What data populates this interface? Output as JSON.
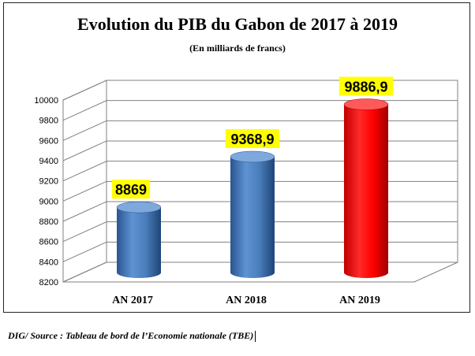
{
  "chart_data": {
    "type": "bar",
    "title": "Evolution du PIB du Gabon de 2017 à 2019",
    "subtitle": "(En milliards de francs)",
    "categories": [
      "AN 2017",
      "AN 2018",
      "AN 2019"
    ],
    "values": [
      8869,
      9368.9,
      9886.9
    ],
    "value_labels": [
      "8869",
      "9368,9",
      "9886,9"
    ],
    "bar_colors": [
      "#4a7ebb",
      "#4a7ebb",
      "#ff0000"
    ],
    "ylim": [
      8200,
      10000
    ],
    "yticks": [
      8200,
      8400,
      8600,
      8800,
      9000,
      9200,
      9400,
      9600,
      9800,
      10000
    ],
    "xlabel": "",
    "ylabel": "",
    "grid": true,
    "legend": "none"
  },
  "source": "DIG/ Source : Tableau de bord de l’Economie nationale (TBE)"
}
